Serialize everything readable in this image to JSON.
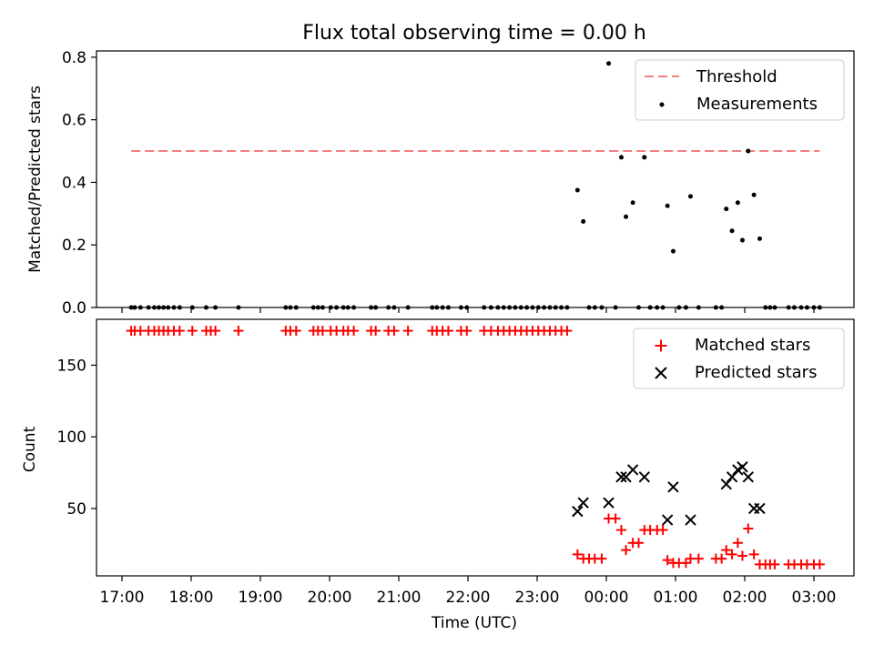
{
  "chart_data": [
    {
      "type": "scatter",
      "title": "Flux total observing time = 0.00 h",
      "ylabel": "Matched/Predicted stars",
      "xlabel": "",
      "ylim": [
        0,
        0.82
      ],
      "yticks": [
        "0.0",
        "0.2",
        "0.4",
        "0.6",
        "0.8"
      ],
      "grid": false,
      "legend_position": "top-right",
      "threshold": {
        "name": "Threshold",
        "value": 0.5,
        "x_start": "17:08",
        "x_end": "03:05",
        "color": "#f08080",
        "style": "dashed"
      },
      "series": [
        {
          "name": "Measurements",
          "color": "#000000",
          "marker": "dot",
          "points": [
            [
              "17:08",
              0
            ],
            [
              "17:11",
              0
            ],
            [
              "17:16",
              0
            ],
            [
              "17:23",
              0
            ],
            [
              "17:28",
              0
            ],
            [
              "17:32",
              0
            ],
            [
              "17:36",
              0
            ],
            [
              "17:40",
              0
            ],
            [
              "17:45",
              0
            ],
            [
              "17:50",
              0
            ],
            [
              "18:01",
              0
            ],
            [
              "18:13",
              0
            ],
            [
              "18:21",
              0
            ],
            [
              "18:41",
              0
            ],
            [
              "19:22",
              0
            ],
            [
              "19:26",
              0
            ],
            [
              "19:31",
              0
            ],
            [
              "19:46",
              0
            ],
            [
              "19:50",
              0
            ],
            [
              "19:54",
              0
            ],
            [
              "20:01",
              0
            ],
            [
              "20:06",
              0
            ],
            [
              "20:12",
              0
            ],
            [
              "20:16",
              0
            ],
            [
              "20:21",
              0
            ],
            [
              "20:36",
              0
            ],
            [
              "20:40",
              0
            ],
            [
              "20:51",
              0
            ],
            [
              "20:56",
              0
            ],
            [
              "21:08",
              0
            ],
            [
              "21:29",
              0
            ],
            [
              "21:33",
              0
            ],
            [
              "21:38",
              0
            ],
            [
              "21:43",
              0
            ],
            [
              "21:54",
              0
            ],
            [
              "21:59",
              0
            ],
            [
              "22:14",
              0
            ],
            [
              "22:20",
              0
            ],
            [
              "22:26",
              0
            ],
            [
              "22:31",
              0
            ],
            [
              "22:36",
              0
            ],
            [
              "22:41",
              0
            ],
            [
              "22:46",
              0
            ],
            [
              "22:51",
              0
            ],
            [
              "22:56",
              0
            ],
            [
              "23:01",
              0
            ],
            [
              "23:06",
              0
            ],
            [
              "23:11",
              0
            ],
            [
              "23:16",
              0
            ],
            [
              "23:21",
              0
            ],
            [
              "23:26",
              0
            ],
            [
              "23:35",
              0.375
            ],
            [
              "23:40",
              0.275
            ],
            [
              "23:45",
              0
            ],
            [
              "23:50",
              0
            ],
            [
              "23:56",
              0
            ],
            [
              "00:02",
              0.78
            ],
            [
              "00:08",
              0
            ],
            [
              "00:13",
              0.48
            ],
            [
              "00:17",
              0.29
            ],
            [
              "00:23",
              0.335
            ],
            [
              "00:28",
              0
            ],
            [
              "00:33",
              0.48
            ],
            [
              "00:38",
              0
            ],
            [
              "00:44",
              0
            ],
            [
              "00:49",
              0
            ],
            [
              "00:53",
              0.325
            ],
            [
              "00:58",
              0.18
            ],
            [
              "01:03",
              0
            ],
            [
              "01:09",
              0
            ],
            [
              "01:13",
              0.355
            ],
            [
              "01:20",
              0
            ],
            [
              "01:35",
              0
            ],
            [
              "01:40",
              0
            ],
            [
              "01:44",
              0.315
            ],
            [
              "01:49",
              0.245
            ],
            [
              "01:54",
              0.335
            ],
            [
              "01:58",
              0.215
            ],
            [
              "02:03",
              0.5
            ],
            [
              "02:08",
              0.36
            ],
            [
              "02:13",
              0.22
            ],
            [
              "02:18",
              0
            ],
            [
              "02:22",
              0
            ],
            [
              "02:26",
              0
            ],
            [
              "02:38",
              0
            ],
            [
              "02:43",
              0
            ],
            [
              "02:49",
              0
            ],
            [
              "02:54",
              0
            ],
            [
              "03:00",
              0
            ],
            [
              "03:05",
              0
            ]
          ]
        }
      ]
    },
    {
      "type": "scatter",
      "title": "",
      "xlabel": "Time (UTC)",
      "ylabel": "Count",
      "ylim": [
        3,
        182
      ],
      "yticks": [
        "50",
        "100",
        "150"
      ],
      "xticks": [
        "17:00",
        "18:00",
        "19:00",
        "20:00",
        "21:00",
        "22:00",
        "23:00",
        "00:00",
        "01:00",
        "02:00",
        "03:00"
      ],
      "grid": false,
      "legend_position": "top-right",
      "series": [
        {
          "name": "Matched stars",
          "color": "#ff0000",
          "marker": "plus",
          "points": [
            [
              "17:08",
              174
            ],
            [
              "17:11",
              174
            ],
            [
              "17:16",
              174
            ],
            [
              "17:23",
              174
            ],
            [
              "17:28",
              174
            ],
            [
              "17:32",
              174
            ],
            [
              "17:36",
              174
            ],
            [
              "17:40",
              174
            ],
            [
              "17:45",
              174
            ],
            [
              "17:50",
              174
            ],
            [
              "18:01",
              174
            ],
            [
              "18:13",
              174
            ],
            [
              "18:17",
              174
            ],
            [
              "18:21",
              174
            ],
            [
              "18:41",
              174
            ],
            [
              "19:22",
              174
            ],
            [
              "19:26",
              174
            ],
            [
              "19:31",
              174
            ],
            [
              "19:46",
              174
            ],
            [
              "19:50",
              174
            ],
            [
              "19:54",
              174
            ],
            [
              "20:01",
              174
            ],
            [
              "20:06",
              174
            ],
            [
              "20:12",
              174
            ],
            [
              "20:16",
              174
            ],
            [
              "20:21",
              174
            ],
            [
              "20:36",
              174
            ],
            [
              "20:40",
              174
            ],
            [
              "20:51",
              174
            ],
            [
              "20:56",
              174
            ],
            [
              "21:08",
              174
            ],
            [
              "21:29",
              174
            ],
            [
              "21:33",
              174
            ],
            [
              "21:38",
              174
            ],
            [
              "21:43",
              174
            ],
            [
              "21:54",
              174
            ],
            [
              "21:59",
              174
            ],
            [
              "22:14",
              174
            ],
            [
              "22:20",
              174
            ],
            [
              "22:26",
              174
            ],
            [
              "22:31",
              174
            ],
            [
              "22:36",
              174
            ],
            [
              "22:41",
              174
            ],
            [
              "22:46",
              174
            ],
            [
              "22:51",
              174
            ],
            [
              "22:56",
              174
            ],
            [
              "23:01",
              174
            ],
            [
              "23:06",
              174
            ],
            [
              "23:11",
              174
            ],
            [
              "23:16",
              174
            ],
            [
              "23:21",
              174
            ],
            [
              "23:26",
              174
            ],
            [
              "23:35",
              18
            ],
            [
              "23:40",
              15
            ],
            [
              "23:45",
              15
            ],
            [
              "23:50",
              15
            ],
            [
              "23:56",
              15
            ],
            [
              "00:02",
              43
            ],
            [
              "00:08",
              43
            ],
            [
              "00:13",
              35
            ],
            [
              "00:17",
              21
            ],
            [
              "00:23",
              26
            ],
            [
              "00:28",
              26
            ],
            [
              "00:33",
              35
            ],
            [
              "00:38",
              35
            ],
            [
              "00:44",
              35
            ],
            [
              "00:49",
              35
            ],
            [
              "00:53",
              14
            ],
            [
              "00:58",
              12
            ],
            [
              "01:03",
              12
            ],
            [
              "01:09",
              12
            ],
            [
              "01:13",
              15
            ],
            [
              "01:20",
              15
            ],
            [
              "01:35",
              15
            ],
            [
              "01:40",
              15
            ],
            [
              "01:44",
              21
            ],
            [
              "01:49",
              18
            ],
            [
              "01:54",
              26
            ],
            [
              "01:58",
              17
            ],
            [
              "02:03",
              36
            ],
            [
              "02:08",
              18
            ],
            [
              "02:13",
              11
            ],
            [
              "02:18",
              11
            ],
            [
              "02:22",
              11
            ],
            [
              "02:26",
              11
            ],
            [
              "02:38",
              11
            ],
            [
              "02:43",
              11
            ],
            [
              "02:49",
              11
            ],
            [
              "02:54",
              11
            ],
            [
              "03:00",
              11
            ],
            [
              "03:05",
              11
            ]
          ]
        },
        {
          "name": "Predicted stars",
          "color": "#000000",
          "marker": "x",
          "points": [
            [
              "23:35",
              48
            ],
            [
              "23:40",
              54
            ],
            [
              "00:02",
              54
            ],
            [
              "00:13",
              72
            ],
            [
              "00:17",
              72
            ],
            [
              "00:23",
              77
            ],
            [
              "00:33",
              72
            ],
            [
              "00:53",
              42
            ],
            [
              "00:58",
              65
            ],
            [
              "01:13",
              42
            ],
            [
              "01:44",
              67
            ],
            [
              "01:49",
              72
            ],
            [
              "01:54",
              77
            ],
            [
              "01:58",
              79
            ],
            [
              "02:03",
              72
            ],
            [
              "02:08",
              50
            ],
            [
              "02:13",
              50
            ]
          ]
        }
      ]
    }
  ]
}
